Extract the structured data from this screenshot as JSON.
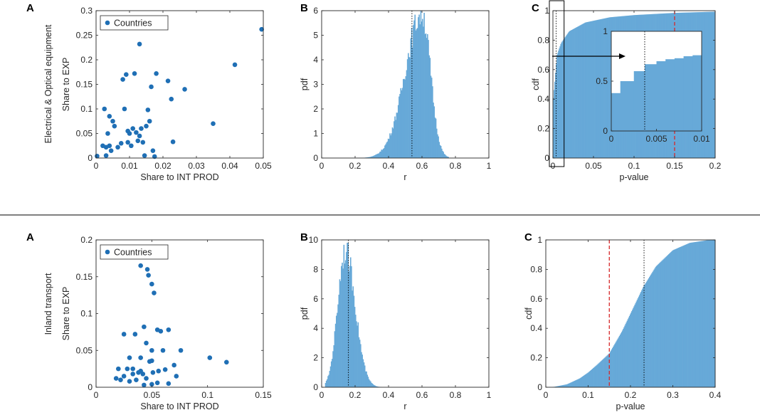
{
  "figure": {
    "row_titles": [
      "Electrical & Optical equipment",
      "Inland transport"
    ],
    "separator": true
  },
  "colors": {
    "bar": "#67a9d8",
    "point": "#1f6fb5",
    "axis": "#262626",
    "redline": "#d62728",
    "blackline": "#000000"
  },
  "chart_data": [
    {
      "panel_label": "A",
      "type": "scatter",
      "xlabel": "Share to INT PROD",
      "ylabel": "Share to EXP",
      "xlim": [
        0,
        0.05
      ],
      "ylim": [
        0,
        0.3
      ],
      "xticks": [
        0,
        0.01,
        0.02,
        0.03,
        0.04,
        0.05
      ],
      "xtick_labels": [
        "0",
        "0.01",
        "0.02",
        "0.03",
        "0.04",
        "0.05"
      ],
      "yticks": [
        0,
        0.05,
        0.1,
        0.15,
        0.2,
        0.25,
        0.3
      ],
      "ytick_labels": [
        "0",
        "0.05",
        "0.1",
        "0.15",
        "0.2",
        "0.25",
        "0.3"
      ],
      "legend": "Countries",
      "legend_position": "top-left",
      "x": [
        0.0003,
        0.002,
        0.003,
        0.0025,
        0.0035,
        0.004,
        0.003,
        0.004,
        0.005,
        0.0055,
        0.0045,
        0.0075,
        0.008,
        0.009,
        0.01,
        0.0095,
        0.011,
        0.012,
        0.0105,
        0.013,
        0.0125,
        0.014,
        0.0135,
        0.015,
        0.0145,
        0.016,
        0.017,
        0.0165,
        0.0175,
        0.018,
        0.013,
        0.0085,
        0.0115,
        0.0155,
        0.0215,
        0.023,
        0.0265,
        0.0225,
        0.035,
        0.0415,
        0.0495,
        0.0095,
        0.0065
      ],
      "y": [
        0.004,
        0.025,
        0.022,
        0.1,
        0.05,
        0.085,
        0.005,
        0.025,
        0.075,
        0.065,
        0.015,
        0.03,
        0.16,
        0.17,
        0.05,
        0.055,
        0.06,
        0.052,
        0.025,
        0.045,
        0.035,
        0.032,
        0.06,
        0.065,
        0.005,
        0.075,
        0.015,
        0.145,
        0.003,
        0.172,
        0.232,
        0.1,
        0.172,
        0.098,
        0.157,
        0.033,
        0.14,
        0.12,
        0.07,
        0.19,
        0.262,
        0.032,
        0.022
      ]
    },
    {
      "panel_label": "B",
      "type": "bar",
      "xlabel": "r",
      "ylabel": "pdf",
      "xlim": [
        0,
        1
      ],
      "ylim": [
        0,
        6
      ],
      "xticks": [
        0,
        0.2,
        0.4,
        0.6,
        0.8,
        1
      ],
      "xtick_labels": [
        "0",
        "0.2",
        "0.4",
        "0.6",
        "0.8",
        "1"
      ],
      "yticks": [
        0,
        1,
        2,
        3,
        4,
        5,
        6
      ],
      "ytick_labels": [
        "0",
        "1",
        "2",
        "3",
        "4",
        "5",
        "6"
      ],
      "dist": {
        "kind": "skew",
        "mode": 0.6,
        "peak": 5.9,
        "sl": 0.1,
        "sr": 0.05,
        "lo": 0.17,
        "hi": 0.76
      },
      "vline": {
        "x": 0.54,
        "style": "dotted"
      }
    },
    {
      "panel_label": "C",
      "type": "area",
      "xlabel": "p-value",
      "ylabel": "cdf",
      "xlim": [
        0,
        0.2
      ],
      "ylim": [
        0,
        1
      ],
      "xticks": [
        0,
        0.05,
        0.1,
        0.15,
        0.2
      ],
      "xtick_labels": [
        "0",
        "0.05",
        "0.1",
        "0.15",
        "0.2"
      ],
      "yticks": [
        0,
        0.2,
        0.4,
        0.6,
        0.8,
        1
      ],
      "ytick_labels": [
        "0",
        "0.2",
        "0.4",
        "0.6",
        "0.8",
        "1"
      ],
      "cdf": {
        "kind": "fast",
        "points": [
          [
            0,
            0.38
          ],
          [
            0.002,
            0.5
          ],
          [
            0.005,
            0.7
          ],
          [
            0.01,
            0.78
          ],
          [
            0.02,
            0.86
          ],
          [
            0.04,
            0.92
          ],
          [
            0.07,
            0.955
          ],
          [
            0.1,
            0.97
          ],
          [
            0.15,
            0.985
          ],
          [
            0.2,
            0.993
          ]
        ]
      },
      "vline_black": 0.004,
      "vline_red": 0.15,
      "inset": {
        "xlim": [
          0,
          0.01
        ],
        "ylim": [
          0,
          1
        ],
        "xticks": [
          0,
          0.005,
          0.01
        ],
        "xtick_labels": [
          "0",
          "0.005",
          "0.01"
        ],
        "yticks": [
          0,
          0.5,
          1
        ],
        "ytick_labels": [
          "0",
          "0.5",
          "1"
        ],
        "steps": [
          [
            0,
            0.38
          ],
          [
            0.001,
            0.5
          ],
          [
            0.0025,
            0.6
          ],
          [
            0.0037,
            0.67
          ],
          [
            0.005,
            0.7
          ],
          [
            0.006,
            0.72
          ],
          [
            0.007,
            0.73
          ],
          [
            0.008,
            0.75
          ],
          [
            0.009,
            0.76
          ],
          [
            0.01,
            0.77
          ]
        ],
        "vline_black": 0.0037,
        "zoom_box_xlim": [
          0,
          0.012
        ],
        "zoom_box_ylim": [
          0,
          1
        ]
      }
    },
    {
      "panel_label": "A",
      "type": "scatter",
      "xlabel": "Share to INT PROD",
      "ylabel": "Share to EXP",
      "xlim": [
        0,
        0.15
      ],
      "ylim": [
        0,
        0.2
      ],
      "xticks": [
        0,
        0.05,
        0.1,
        0.15
      ],
      "xtick_labels": [
        "0",
        "0.05",
        "0.1",
        "0.15"
      ],
      "yticks": [
        0,
        0.05,
        0.1,
        0.15,
        0.2
      ],
      "ytick_labels": [
        "0",
        "0.05",
        "0.1",
        "0.15",
        "0.2"
      ],
      "legend": "Countries",
      "legend_position": "top-left",
      "x": [
        0.04,
        0.046,
        0.047,
        0.05,
        0.052,
        0.043,
        0.055,
        0.065,
        0.058,
        0.025,
        0.035,
        0.045,
        0.05,
        0.06,
        0.076,
        0.05,
        0.03,
        0.04,
        0.048,
        0.02,
        0.028,
        0.033,
        0.038,
        0.042,
        0.051,
        0.056,
        0.062,
        0.07,
        0.025,
        0.018,
        0.022,
        0.03,
        0.036,
        0.045,
        0.055,
        0.072,
        0.102,
        0.117,
        0.043,
        0.05,
        0.065,
        0.033,
        0.04
      ],
      "y": [
        0.165,
        0.16,
        0.152,
        0.14,
        0.128,
        0.082,
        0.078,
        0.078,
        0.076,
        0.072,
        0.072,
        0.06,
        0.05,
        0.05,
        0.05,
        0.036,
        0.04,
        0.04,
        0.035,
        0.025,
        0.025,
        0.025,
        0.02,
        0.018,
        0.02,
        0.022,
        0.024,
        0.03,
        0.015,
        0.012,
        0.01,
        0.008,
        0.01,
        0.012,
        0.006,
        0.015,
        0.04,
        0.034,
        0.003,
        0.004,
        0.005,
        0.018,
        0.022
      ]
    },
    {
      "panel_label": "B",
      "type": "bar",
      "xlabel": "r",
      "ylabel": "pdf",
      "xlim": [
        0,
        1
      ],
      "ylim": [
        0,
        10
      ],
      "xticks": [
        0,
        0.2,
        0.4,
        0.6,
        0.8,
        1
      ],
      "xtick_labels": [
        "0",
        "0.2",
        "0.4",
        "0.6",
        "0.8",
        "1"
      ],
      "yticks": [
        0,
        2,
        4,
        6,
        8,
        10
      ],
      "ytick_labels": [
        "0",
        "2",
        "4",
        "6",
        "8",
        "10"
      ],
      "dist": {
        "kind": "skew",
        "mode": 0.14,
        "peak": 9.3,
        "sl": 0.045,
        "sr": 0.06,
        "lo": 0.02,
        "hi": 0.36
      },
      "vline": {
        "x": 0.16,
        "style": "dotted"
      }
    },
    {
      "panel_label": "C",
      "type": "area",
      "xlabel": "p-value",
      "ylabel": "cdf",
      "xlim": [
        0,
        0.4
      ],
      "ylim": [
        0,
        1
      ],
      "xticks": [
        0,
        0.1,
        0.2,
        0.3,
        0.4
      ],
      "xtick_labels": [
        "0",
        "0.1",
        "0.2",
        "0.3",
        "0.4"
      ],
      "yticks": [
        0,
        0.2,
        0.4,
        0.6,
        0.8,
        1
      ],
      "ytick_labels": [
        "0",
        "0.2",
        "0.4",
        "0.6",
        "0.8",
        "1"
      ],
      "cdf": {
        "kind": "sigmoid",
        "points": [
          [
            0,
            0
          ],
          [
            0.02,
            0.003
          ],
          [
            0.05,
            0.02
          ],
          [
            0.08,
            0.06
          ],
          [
            0.1,
            0.1
          ],
          [
            0.12,
            0.15
          ],
          [
            0.15,
            0.23
          ],
          [
            0.18,
            0.38
          ],
          [
            0.2,
            0.5
          ],
          [
            0.23,
            0.68
          ],
          [
            0.26,
            0.82
          ],
          [
            0.3,
            0.93
          ],
          [
            0.34,
            0.98
          ],
          [
            0.38,
            0.997
          ],
          [
            0.4,
            1
          ]
        ]
      },
      "vline_black": 0.232,
      "vline_red": 0.15
    }
  ]
}
